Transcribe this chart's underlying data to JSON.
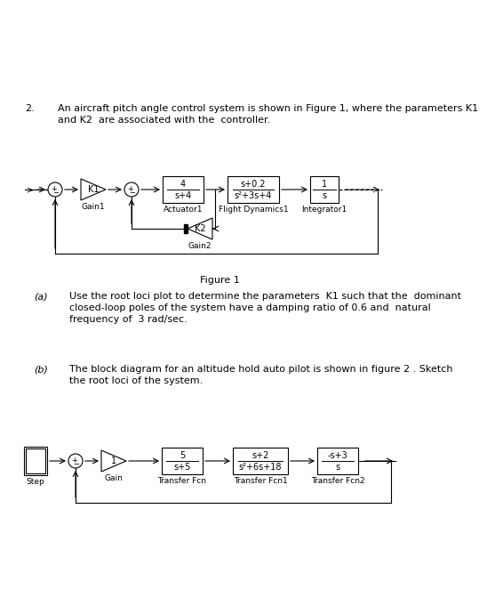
{
  "bg_color": "#ffffff",
  "question_number": "2.",
  "question_text_line1": "An aircraft pitch angle control system is shown in Figure 1, where the parameters K1",
  "question_text_line2": "and K2  are associated with the  controller.",
  "fig1_caption": "Figure 1",
  "part_a_label": "(a)",
  "part_a_line1": "Use the root loci plot to determine the parameters  K1 such that the  dominant",
  "part_a_line2": "closed-loop poles of the system have a damping ratio of 0.6 and  natural",
  "part_a_line3": "frequency of  3 rad/sec.",
  "part_b_label": "(b)",
  "part_b_line1": "The block diagram for an altitude hold auto pilot is shown in figure 2 . Sketch",
  "part_b_line2": "the root loci of the system.",
  "act1_top": "4",
  "act1_bot": "s+4",
  "act1_label": "Actuator1",
  "fd1_top": "s+0.2",
  "fd1_bot": "s²+3s+4",
  "fd1_label": "Flight Dynamics1",
  "int1_top": "1",
  "int1_bot": "s",
  "int1_label": "Integrator1",
  "gain1_label": "K1",
  "gain1_name": "Gain1",
  "gain2_label": "K2",
  "gain2_name": "Gain2",
  "tf1_top": "5",
  "tf1_bot": "s+5",
  "tf1_label": "Transfer Fcn",
  "tf2_top": "s+2",
  "tf2_bot": "s²+6s+18",
  "tf2_label": "Transfer Fcn1",
  "tf3_top": "-s+3",
  "tf3_bot": "s",
  "tf3_label": "Transfer Fcn2",
  "step_label": "Step",
  "gain_label": "1",
  "gain_name": "Gain"
}
